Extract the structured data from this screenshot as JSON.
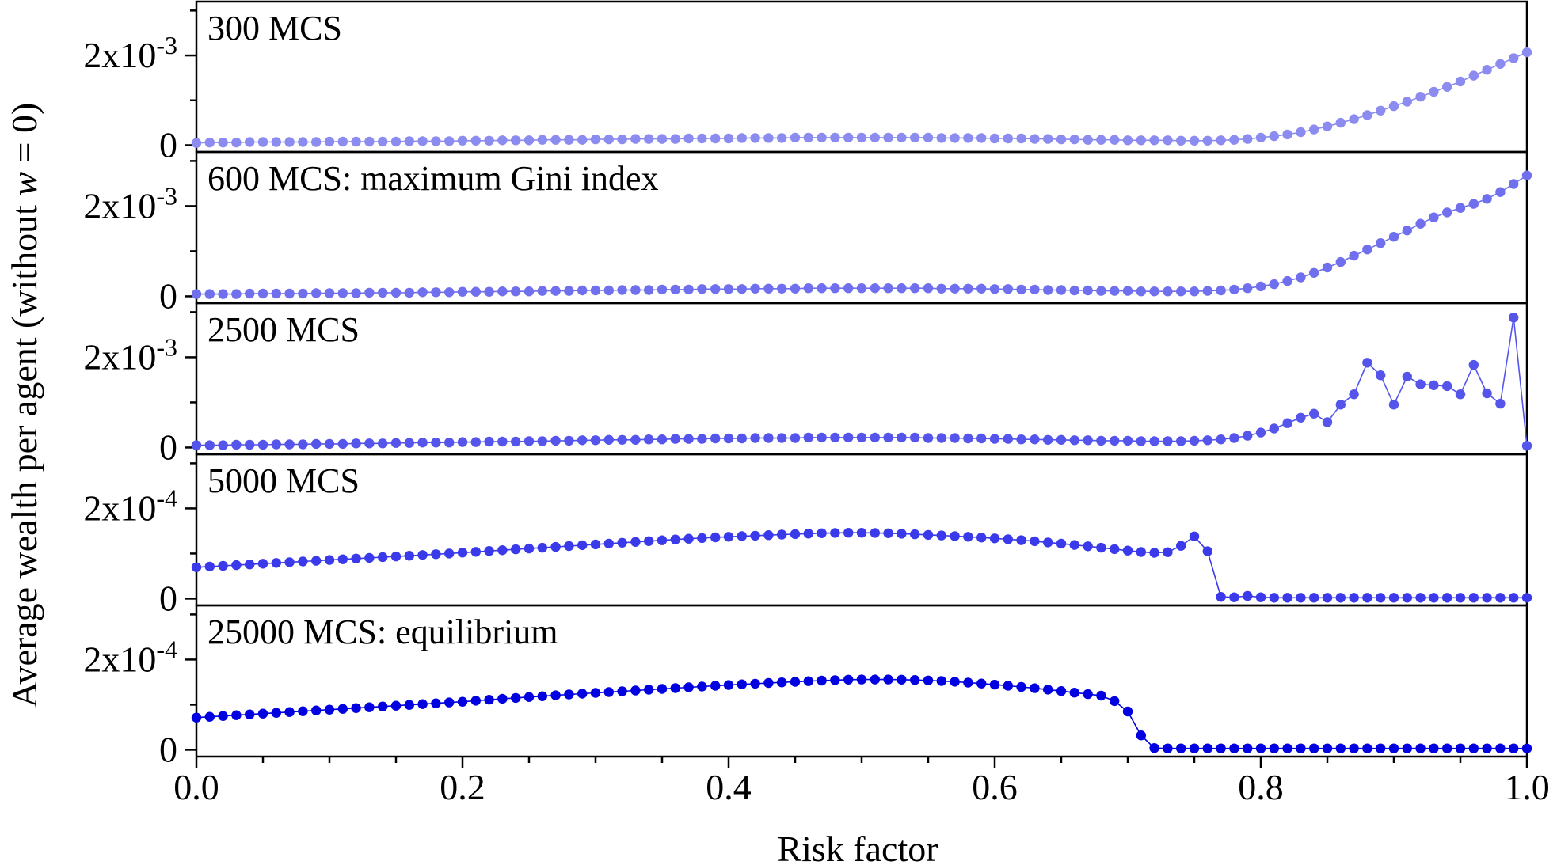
{
  "chart_data": {
    "type": "scatter",
    "xlabel": "Risk factor",
    "ylabel": {
      "prefix": "Average wealth per agent (without ",
      "var": "w",
      "suffix": " = 0)"
    },
    "x_start": 0.0,
    "x_step": 0.01,
    "xlim": [
      0,
      1
    ],
    "x_ticks": [
      {
        "value": 0.0,
        "label": "0.0"
      },
      {
        "value": 0.2,
        "label": "0.2"
      },
      {
        "value": 0.4,
        "label": "0.4"
      },
      {
        "value": 0.6,
        "label": "0.6"
      },
      {
        "value": 0.8,
        "label": "0.8"
      },
      {
        "value": 1.0,
        "label": "1.0"
      }
    ],
    "panels": [
      {
        "name": "300 MCS",
        "label": "300 MCS",
        "color": "#8c8cf0",
        "ylim": [
          -0.00015,
          0.0032
        ],
        "y_ticks": [
          {
            "value": 0,
            "base": "0",
            "exp": ""
          },
          {
            "value": 0.002,
            "base": "2x10",
            "exp": "-3"
          }
        ],
        "values": [
          5e-05,
          6e-05,
          6e-05,
          6e-05,
          7e-05,
          7e-05,
          7e-05,
          7e-05,
          7e-05,
          7e-05,
          8e-05,
          8e-05,
          8e-05,
          8e-05,
          8e-05,
          8e-05,
          9e-05,
          9e-05,
          9e-05,
          9e-05,
          0.0001,
          0.0001,
          0.0001,
          0.00011,
          0.00011,
          0.00011,
          0.00012,
          0.00012,
          0.00012,
          0.00012,
          0.00013,
          0.00013,
          0.00013,
          0.00014,
          0.00014,
          0.00014,
          0.00014,
          0.00015,
          0.00015,
          0.00015,
          0.00015,
          0.00016,
          0.00016,
          0.00016,
          0.00016,
          0.00017,
          0.00017,
          0.00017,
          0.00017,
          0.00017,
          0.00017,
          0.00017,
          0.00017,
          0.00017,
          0.00017,
          0.00017,
          0.00016,
          0.00016,
          0.00016,
          0.00016,
          0.00015,
          0.00015,
          0.00015,
          0.00014,
          0.00014,
          0.00013,
          0.00013,
          0.00012,
          0.00012,
          0.00012,
          0.00011,
          0.00011,
          0.00011,
          0.00011,
          0.0001,
          0.0001,
          0.0001,
          0.00011,
          0.00012,
          0.00014,
          0.00017,
          0.0002,
          0.00024,
          0.00029,
          0.00035,
          0.00042,
          0.0005,
          0.00058,
          0.00067,
          0.00077,
          0.00087,
          0.00097,
          0.00108,
          0.00119,
          0.0013,
          0.00142,
          0.00155,
          0.00168,
          0.00181,
          0.00194,
          0.00207
        ]
      },
      {
        "name": "600 MCS",
        "label": "600 MCS: maximum Gini index",
        "color": "#7070ee",
        "ylim": [
          -0.00015,
          0.0032
        ],
        "y_ticks": [
          {
            "value": 0,
            "base": "0",
            "exp": ""
          },
          {
            "value": 0.002,
            "base": "2x10",
            "exp": "-3"
          }
        ],
        "values": [
          5e-05,
          5e-05,
          5e-05,
          5e-05,
          6e-05,
          6e-05,
          6e-05,
          6e-05,
          6e-05,
          7e-05,
          7e-05,
          7e-05,
          7e-05,
          8e-05,
          8e-05,
          8e-05,
          8e-05,
          9e-05,
          9e-05,
          9e-05,
          0.0001,
          0.0001,
          0.0001,
          0.00011,
          0.00011,
          0.00011,
          0.00012,
          0.00012,
          0.00012,
          0.00013,
          0.00013,
          0.00013,
          0.00014,
          0.00014,
          0.00014,
          0.00015,
          0.00015,
          0.00015,
          0.00016,
          0.00016,
          0.00016,
          0.00016,
          0.00017,
          0.00017,
          0.00017,
          0.00017,
          0.00018,
          0.00018,
          0.00018,
          0.00018,
          0.00018,
          0.00018,
          0.00018,
          0.00018,
          0.00018,
          0.00018,
          0.00017,
          0.00017,
          0.00017,
          0.00017,
          0.00016,
          0.00016,
          0.00015,
          0.00015,
          0.00014,
          0.00014,
          0.00013,
          0.00013,
          0.00012,
          0.00012,
          0.00012,
          0.00011,
          0.00011,
          0.00011,
          0.00011,
          0.00011,
          0.00012,
          0.00013,
          0.00015,
          0.00018,
          0.00022,
          0.00027,
          0.00034,
          0.00042,
          0.00052,
          0.00064,
          0.00076,
          0.0009,
          0.00104,
          0.00118,
          0.00132,
          0.00146,
          0.00161,
          0.00175,
          0.00186,
          0.00196,
          0.00205,
          0.00216,
          0.00231,
          0.00249,
          0.00268
        ]
      },
      {
        "name": "2500 MCS",
        "label": "2500 MCS",
        "color": "#5555ec",
        "ylim": [
          -0.00015,
          0.0032
        ],
        "y_ticks": [
          {
            "value": 0,
            "base": "0",
            "exp": ""
          },
          {
            "value": 0.002,
            "base": "2x10",
            "exp": "-3"
          }
        ],
        "values": [
          5e-05,
          5e-05,
          5e-05,
          6e-05,
          6e-05,
          6e-05,
          7e-05,
          7e-05,
          7e-05,
          8e-05,
          8e-05,
          8e-05,
          9e-05,
          9e-05,
          9e-05,
          0.0001,
          0.0001,
          0.00011,
          0.00011,
          0.00011,
          0.00012,
          0.00012,
          0.00013,
          0.00013,
          0.00013,
          0.00014,
          0.00014,
          0.00015,
          0.00015,
          0.00016,
          0.00016,
          0.00017,
          0.00017,
          0.00017,
          0.00018,
          0.00018,
          0.00019,
          0.00019,
          0.00019,
          0.0002,
          0.0002,
          0.0002,
          0.00021,
          0.00021,
          0.00021,
          0.00021,
          0.00022,
          0.00022,
          0.00022,
          0.00022,
          0.00022,
          0.00022,
          0.00022,
          0.00022,
          0.00022,
          0.00021,
          0.00021,
          0.00021,
          0.0002,
          0.0002,
          0.00019,
          0.00019,
          0.00018,
          0.00018,
          0.00017,
          0.00017,
          0.00016,
          0.00016,
          0.00015,
          0.00015,
          0.00015,
          0.00014,
          0.00014,
          0.00014,
          0.00014,
          0.00015,
          0.00016,
          0.00018,
          0.00021,
          0.00026,
          0.00033,
          0.00042,
          0.00054,
          0.00066,
          0.00075,
          0.00056,
          0.00095,
          0.00118,
          0.00188,
          0.0016,
          0.00095,
          0.00157,
          0.0014,
          0.00138,
          0.00136,
          0.00118,
          0.00183,
          0.0012,
          0.00097,
          0.00288,
          4e-05
        ]
      },
      {
        "name": "5000 MCS",
        "label": "5000 MCS",
        "color": "#3a3aea",
        "ylim": [
          -1.5e-05,
          0.00032
        ],
        "y_ticks": [
          {
            "value": 0,
            "base": "0",
            "exp": ""
          },
          {
            "value": 0.0002,
            "base": "2x10",
            "exp": "-4"
          }
        ],
        "values": [
          6.95e-05,
          7.11e-05,
          7.27e-05,
          7.43e-05,
          7.59e-05,
          7.75e-05,
          7.91e-05,
          8.07e-05,
          8.23e-05,
          8.39e-05,
          8.56e-05,
          8.72e-05,
          8.88e-05,
          9.04e-05,
          9.2e-05,
          9.36e-05,
          9.52e-05,
          9.68e-05,
          9.84e-05,
          0.0001,
          0.000102,
          0.0001038,
          0.0001056,
          0.0001074,
          0.0001093,
          0.0001111,
          0.0001129,
          0.0001147,
          0.0001166,
          0.0001184,
          0.0001202,
          0.000122,
          0.0001239,
          0.0001257,
          0.0001275,
          0.0001294,
          0.0001311,
          0.0001328,
          0.0001343,
          0.0001358,
          0.0001371,
          0.0001384,
          0.0001396,
          0.0001408,
          0.0001419,
          0.000143,
          0.000144,
          0.0001449,
          0.0001457,
          0.000146,
          0.000146,
          0.0001456,
          0.0001449,
          0.0001439,
          0.0001426,
          0.0001413,
          0.00014,
          0.0001385,
          0.000137,
          0.0001354,
          0.0001336,
          0.0001317,
          0.0001296,
          0.0001272,
          0.0001246,
          0.0001219,
          0.000119,
          0.000116,
          0.0001129,
          0.0001097,
          0.0001066,
          0.0001034,
          0.0001017,
          0.000103,
          0.000117,
          0.000138,
          0.000105,
          4e-06,
          3e-06,
          6e-06,
          3e-06,
          2e-06,
          2e-06,
          2e-06,
          2e-06,
          2e-06,
          2e-06,
          2e-06,
          2e-06,
          2e-06,
          2e-06,
          2e-06,
          2e-06,
          2e-06,
          2e-06,
          2e-06,
          2e-06,
          2e-06,
          2e-06,
          2e-06,
          2e-06
        ]
      },
      {
        "name": "25000 MCS",
        "label": "25000 MCS: equilibrium",
        "color": "#0000e0",
        "ylim": [
          -1.5e-05,
          0.00032
        ],
        "y_ticks": [
          {
            "value": 0,
            "base": "0",
            "exp": ""
          },
          {
            "value": 0.0002,
            "base": "2x10",
            "exp": "-4"
          }
        ],
        "values": [
          7.14e-05,
          7.32e-05,
          7.49e-05,
          7.67e-05,
          7.84e-05,
          8.02e-05,
          8.2e-05,
          8.37e-05,
          8.55e-05,
          8.72e-05,
          8.9e-05,
          9.08e-05,
          9.25e-05,
          9.43e-05,
          9.61e-05,
          9.78e-05,
          9.96e-05,
          0.0001013,
          0.0001031,
          0.0001049,
          0.0001066,
          0.0001088,
          0.0001109,
          0.000113,
          0.000115,
          0.000117,
          0.0001189,
          0.0001208,
          0.0001226,
          0.0001244,
          0.0001262,
          0.000128,
          0.0001297,
          0.0001315,
          0.0001332,
          0.000135,
          0.0001368,
          0.0001385,
          0.0001402,
          0.0001419,
          0.0001435,
          0.0001451,
          0.0001466,
          0.0001481,
          0.0001495,
          0.0001508,
          0.0001521,
          0.0001533,
          0.0001544,
          0.0001554,
          0.0001559,
          0.0001559,
          0.0001558,
          0.0001554,
          0.0001548,
          0.0001538,
          0.0001525,
          0.0001509,
          0.000149,
          0.0001469,
          0.0001445,
          0.000142,
          0.0001393,
          0.0001365,
          0.0001334,
          0.0001302,
          0.0001268,
          0.0001233,
          0.00012,
          0.000108,
          8.5e-05,
          3.2e-05,
          4e-06,
          3e-06,
          3e-06,
          3e-06,
          3e-06,
          3e-06,
          3e-06,
          3e-06,
          3e-06,
          3e-06,
          3e-06,
          3e-06,
          3e-06,
          3e-06,
          3e-06,
          3e-06,
          3e-06,
          3e-06,
          3e-06,
          3e-06,
          3e-06,
          3e-06,
          3e-06,
          3e-06,
          3e-06,
          3e-06,
          3e-06,
          3e-06,
          3e-06
        ]
      }
    ]
  }
}
